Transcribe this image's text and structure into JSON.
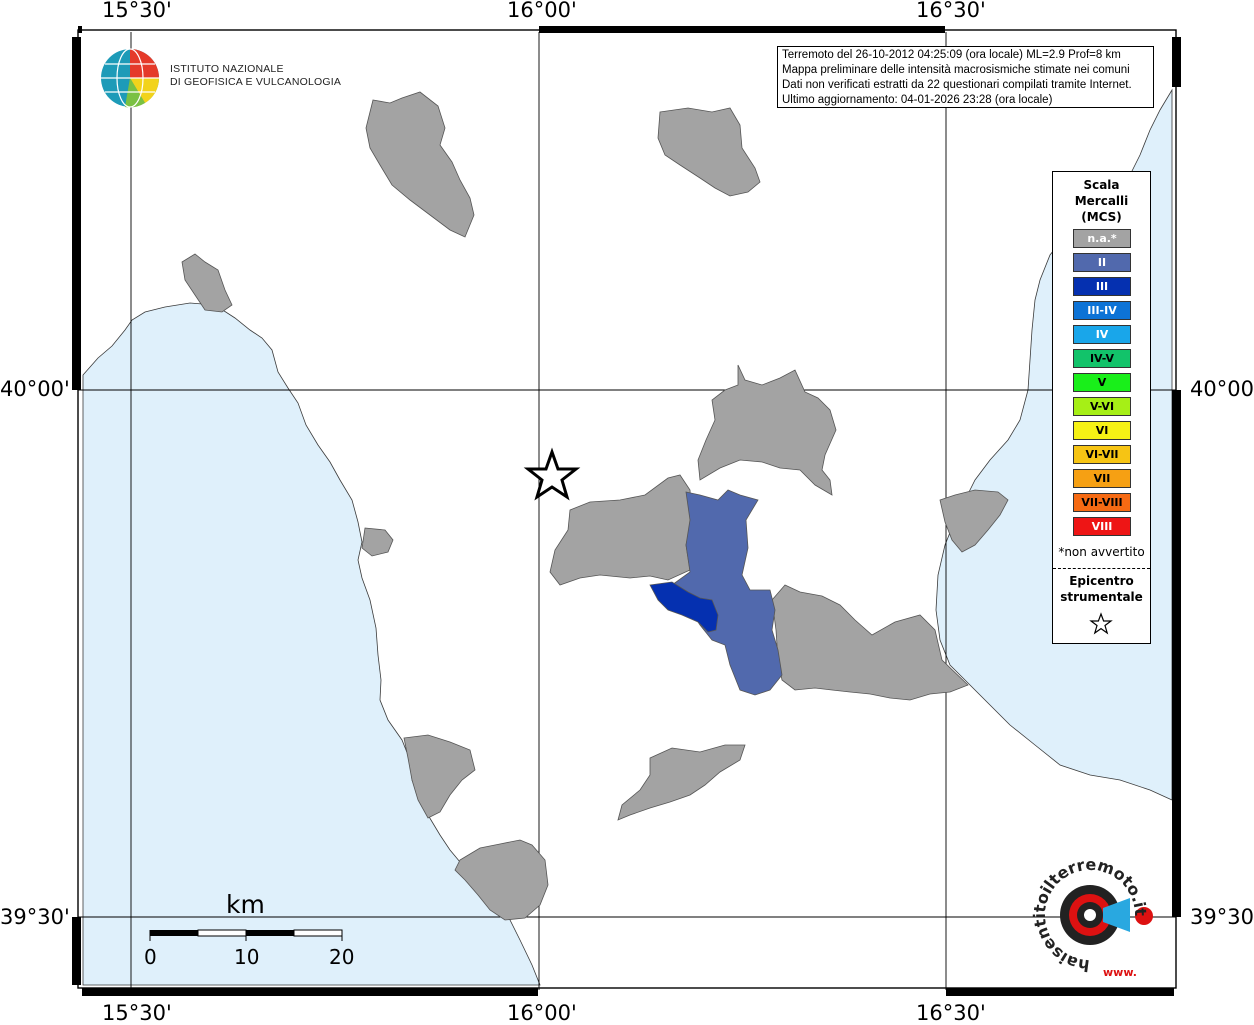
{
  "map": {
    "lon_labels": [
      "15°30'",
      "16°00'",
      "16°30'"
    ],
    "lat_labels": [
      "40°00'",
      "39°30'"
    ]
  },
  "logo": {
    "line1": "ISTITUTO NAZIONALE",
    "line2": "DI GEOFISICA E VULCANOLOGIA"
  },
  "info": {
    "line1": "Terremoto del 26-10-2012 04:25:09 (ora locale) ML=2.9 Prof=8 km",
    "line2": "Mappa preliminare delle intensità macrosismiche stimate nei comuni",
    "line3": "Dati non verificati estratti da 22 questionari compilati tramite Internet.",
    "line4": "Ultimo aggiornamento: 04-01-2026 23:28 (ora locale)"
  },
  "legend": {
    "title1": "Scala",
    "title2": "Mercalli",
    "title3": "(MCS)",
    "items": [
      {
        "label": "n.a.*",
        "color": "#a3a3a3",
        "text_color": "#ffffff"
      },
      {
        "label": "II",
        "color": "#5169ad",
        "text_color": "#ffffff"
      },
      {
        "label": "III",
        "color": "#0530b0",
        "text_color": "#ffffff"
      },
      {
        "label": "III-IV",
        "color": "#0d73d6",
        "text_color": "#ffffff"
      },
      {
        "label": "IV",
        "color": "#19a6ea",
        "text_color": "#ffffff"
      },
      {
        "label": "IV-V",
        "color": "#12c36a",
        "text_color": "#000000"
      },
      {
        "label": "V",
        "color": "#19ef1a",
        "text_color": "#000000"
      },
      {
        "label": "V-VI",
        "color": "#a6ef16",
        "text_color": "#000000"
      },
      {
        "label": "VI",
        "color": "#f6f215",
        "text_color": "#000000"
      },
      {
        "label": "VI-VII",
        "color": "#f6c414",
        "text_color": "#000000"
      },
      {
        "label": "VII",
        "color": "#f6a013",
        "text_color": "#000000"
      },
      {
        "label": "VII-VIII",
        "color": "#f66a13",
        "text_color": "#000000"
      },
      {
        "label": "VIII",
        "color": "#ee1515",
        "text_color": "#ffffff"
      }
    ],
    "note": "*non avvertito",
    "epicentre1": "Epicentro",
    "epicentre2": "strumentale"
  },
  "scale_bar": {
    "title": "km",
    "ticks": [
      "0",
      "10",
      "20"
    ]
  },
  "badge": {
    "text": "haisentitoilterremoto.it",
    "prefix": "www."
  }
}
